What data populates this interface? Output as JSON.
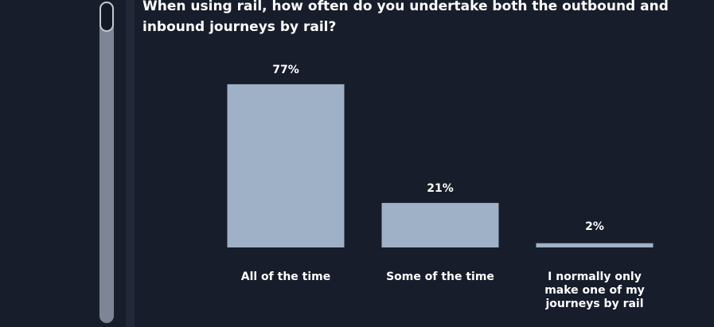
{
  "colors": {
    "background": "#181d2b",
    "bar": "#9fb1c7",
    "text": "#ffffff",
    "scrollbar_track": "#7d8597"
  },
  "chart_data": {
    "type": "bar",
    "title": "When using rail, how often do you undertake both the outbound and inbound journeys by rail?",
    "categories": [
      [
        "All of the time"
      ],
      [
        "Some of the time"
      ],
      [
        "I normally only",
        "make one of my",
        "journeys by rail"
      ]
    ],
    "values": [
      77,
      21,
      2
    ],
    "value_labels": [
      "77%",
      "21%",
      "2%"
    ],
    "ylim": [
      0,
      100
    ],
    "grid": false,
    "legend": "none"
  }
}
